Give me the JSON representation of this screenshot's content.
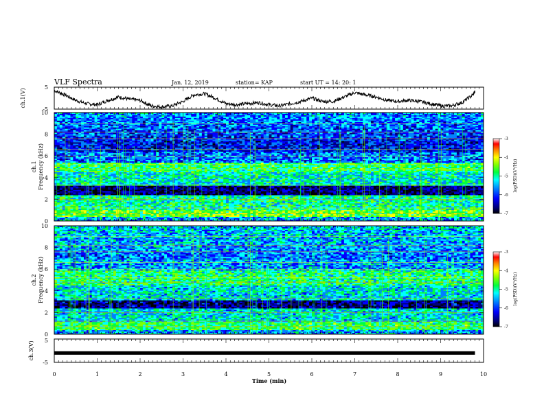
{
  "header": {
    "title": "VLF Spectra",
    "date": "Jan. 12, 2019",
    "station": "station= KAP",
    "start": "start UT = 14: 20: 1"
  },
  "chart_data": [
    {
      "type": "line",
      "panel": "ch1-waveform",
      "ylabel": "ch.1(V)",
      "ylim": [
        -5,
        5
      ],
      "yticks": [
        "5",
        "-5"
      ],
      "xlim": [
        0,
        10
      ],
      "series": [
        {
          "x": [
            0,
            0.25,
            0.5,
            0.75,
            1,
            1.25,
            1.5,
            1.75,
            2,
            2.25,
            2.5,
            2.75,
            3,
            3.25,
            3.5,
            3.75,
            4,
            4.25,
            4.5,
            4.75,
            5,
            5.25,
            5.5,
            5.75,
            6,
            6.25,
            6.5,
            6.75,
            7,
            7.25,
            7.5,
            7.75,
            8,
            8.25,
            8.5,
            8.75,
            9,
            9.25,
            9.5,
            9.75,
            9.8
          ],
          "values": [
            3.5,
            1.5,
            -1,
            -2.5,
            -3,
            -1,
            0.5,
            -0.5,
            -1,
            -3.5,
            -4,
            -3.5,
            -1.5,
            1.5,
            2,
            0,
            -2.5,
            -3,
            -2.5,
            -2,
            -3,
            -3.5,
            -2.5,
            -1.5,
            0,
            -1.5,
            -1.5,
            0.5,
            2.5,
            1.5,
            0.5,
            -1,
            -1.5,
            -1,
            -1.5,
            -2.5,
            -3.5,
            -3.5,
            -2,
            1.5,
            3
          ]
        }
      ]
    },
    {
      "type": "heatmap",
      "panel": "ch1-spectrogram",
      "ylabel": "ch.1",
      "ylabel2": "Frequency (kHz)",
      "ylim": [
        0,
        10
      ],
      "yticks": [
        "0",
        "2",
        "4",
        "6",
        "8",
        "10"
      ],
      "colorbar": {
        "label": "log(PSD)(V²/Hz)",
        "range": [
          -7,
          -3
        ],
        "ticks": [
          "-3",
          "-4",
          "-5",
          "-6",
          "-7"
        ]
      }
    },
    {
      "type": "heatmap",
      "panel": "ch2-spectrogram",
      "ylabel": "ch.2",
      "ylabel2": "Frequency (kHz)",
      "ylim": [
        0,
        10
      ],
      "yticks": [
        "0",
        "2",
        "4",
        "6",
        "8",
        "10"
      ],
      "colorbar": {
        "label": "log(PSD)(V²/Hz)",
        "range": [
          -7,
          -3
        ],
        "ticks": [
          "-3",
          "-4",
          "-5",
          "-6",
          "-7"
        ]
      }
    },
    {
      "type": "line",
      "panel": "ch3-waveform",
      "ylabel": "ch.3(V)",
      "ylim": [
        -5,
        5
      ],
      "yticks": [
        "5",
        "-5"
      ],
      "xlabel": "Time (min)",
      "xlim": [
        0,
        10
      ],
      "xticks": [
        "0",
        "1",
        "2",
        "3",
        "4",
        "5",
        "6",
        "7",
        "8",
        "9",
        "10"
      ],
      "series": [
        {
          "x": [
            0,
            9.8
          ],
          "values": [
            -1,
            -1
          ]
        }
      ]
    }
  ],
  "colors": {
    "trace": "#000000",
    "colorscale": [
      "#000000",
      "#00007a",
      "#0000ff",
      "#0080ff",
      "#00ffff",
      "#00ff40",
      "#80ff00",
      "#ffff00",
      "#ff8000",
      "#ff0000",
      "#ffffff"
    ]
  }
}
